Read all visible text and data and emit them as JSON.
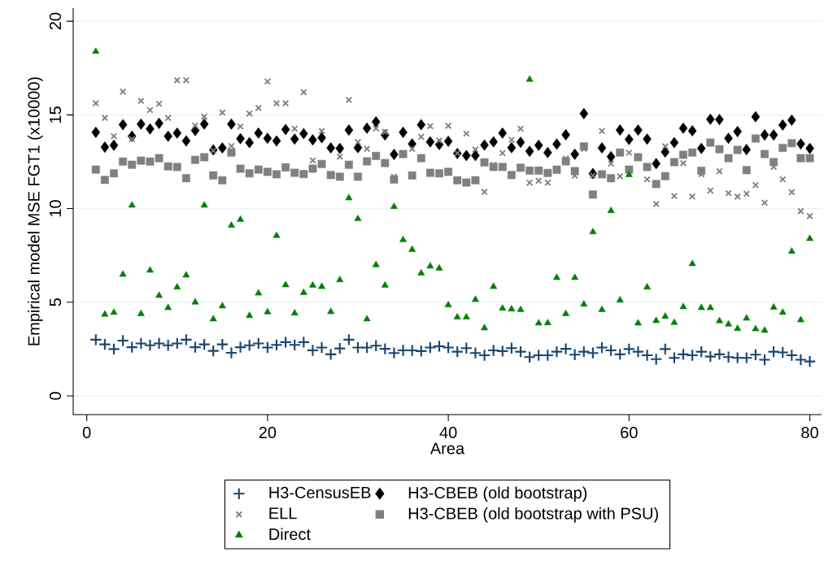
{
  "chart_data": {
    "type": "scatter",
    "xlabel": "Area",
    "ylabel": "Empirical model MSE FGT1 (x10000)",
    "xlim": [
      -1.5,
      81.3
    ],
    "ylim": [
      -1,
      20.7
    ],
    "xticks": [
      0,
      20,
      40,
      60,
      80
    ],
    "yticks": [
      0,
      5,
      10,
      15,
      20
    ],
    "grid": "y",
    "legend": "bottom",
    "x": [
      1,
      2,
      3,
      4,
      5,
      6,
      7,
      8,
      9,
      10,
      11,
      12,
      13,
      14,
      15,
      16,
      17,
      18,
      19,
      20,
      21,
      22,
      23,
      24,
      25,
      26,
      27,
      28,
      29,
      30,
      31,
      32,
      33,
      34,
      35,
      36,
      37,
      38,
      39,
      40,
      41,
      42,
      43,
      44,
      45,
      46,
      47,
      48,
      49,
      50,
      51,
      52,
      53,
      54,
      55,
      56,
      57,
      58,
      59,
      60,
      61,
      62,
      63,
      64,
      65,
      66,
      67,
      68,
      69,
      70,
      71,
      72,
      73,
      74,
      75,
      76,
      77,
      78,
      79,
      80
    ],
    "series": [
      {
        "name": "H3-CensusEB",
        "color": "#1a476f",
        "marker": "plus",
        "values": [
          3.0,
          2.75,
          2.5,
          2.95,
          2.6,
          2.8,
          2.7,
          2.8,
          2.7,
          2.8,
          3.0,
          2.6,
          2.75,
          2.4,
          2.75,
          2.3,
          2.6,
          2.7,
          2.8,
          2.58,
          2.72,
          2.87,
          2.72,
          2.87,
          2.43,
          2.58,
          2.22,
          2.53,
          3.0,
          2.58,
          2.58,
          2.68,
          2.51,
          2.29,
          2.43,
          2.43,
          2.39,
          2.58,
          2.65,
          2.58,
          2.36,
          2.55,
          2.29,
          2.17,
          2.43,
          2.39,
          2.55,
          2.36,
          2.07,
          2.17,
          2.17,
          2.36,
          2.51,
          2.2,
          2.36,
          2.29,
          2.58,
          2.43,
          2.22,
          2.5,
          2.36,
          2.17,
          1.96,
          2.5,
          2.03,
          2.22,
          2.17,
          2.36,
          2.1,
          2.22,
          2.07,
          2.03,
          2.03,
          2.2,
          1.93,
          2.36,
          2.32,
          2.17,
          1.93,
          1.84
        ]
      },
      {
        "name": "H3-CBEB (old bootstrap)",
        "color": "#000000",
        "marker": "diamond",
        "values": [
          14.07,
          13.28,
          13.38,
          14.48,
          13.86,
          14.51,
          14.25,
          14.55,
          13.86,
          14.03,
          13.61,
          14.17,
          14.51,
          13.13,
          13.24,
          14.51,
          13.73,
          13.52,
          14.03,
          13.75,
          13.61,
          14.22,
          13.71,
          14.0,
          13.67,
          13.78,
          13.24,
          13.21,
          14.19,
          13.25,
          14.29,
          14.63,
          13.93,
          12.89,
          14.07,
          13.45,
          14.48,
          13.56,
          13.42,
          13.59,
          12.94,
          12.83,
          12.83,
          13.39,
          13.56,
          14.03,
          13.25,
          13.54,
          13.06,
          13.38,
          12.99,
          13.44,
          13.94,
          12.9,
          15.07,
          11.87,
          13.24,
          12.77,
          14.19,
          13.69,
          14.19,
          13.71,
          12.4,
          13.02,
          13.52,
          14.29,
          14.15,
          13.21,
          14.77,
          14.75,
          13.75,
          14.11,
          13.15,
          14.9,
          13.93,
          13.93,
          14.46,
          14.72,
          13.45,
          13.21
        ]
      },
      {
        "name": "ELL",
        "color": "#808080",
        "marker": "cross",
        "values": [
          15.62,
          14.84,
          13.86,
          16.24,
          13.71,
          15.75,
          15.26,
          15.59,
          14.84,
          16.85,
          16.85,
          14.43,
          14.91,
          13.09,
          15.12,
          13.34,
          14.38,
          15.07,
          15.37,
          16.79,
          15.62,
          15.62,
          14.26,
          16.21,
          12.57,
          14.14,
          null,
          12.77,
          15.8,
          13.55,
          13.19,
          14.28,
          14.09,
          11.7,
          12.96,
          13.19,
          13.83,
          14.4,
          13.63,
          14.42,
          12.96,
          14.0,
          13.15,
          10.89,
          12.34,
          12.96,
          13.67,
          14.26,
          11.38,
          11.49,
          11.38,
          12.0,
          12.67,
          11.76,
          13.19,
          11.76,
          14.14,
          12.4,
          11.72,
          12.98,
          null,
          11.56,
          10.24,
          13.32,
          10.67,
          12.42,
          10.64,
          11.83,
          10.96,
          11.99,
          10.82,
          10.64,
          10.79,
          11.25,
          10.31,
          12.23,
          11.56,
          10.88,
          9.86,
          9.6
        ]
      },
      {
        "name": "H3-CBEB (old bootstrap with PSU)",
        "color": "#808080",
        "marker": "square",
        "values": [
          12.08,
          11.53,
          11.88,
          12.51,
          12.34,
          12.56,
          12.51,
          12.69,
          12.25,
          12.22,
          11.62,
          12.6,
          12.74,
          11.77,
          11.51,
          12.99,
          12.13,
          11.88,
          12.08,
          11.96,
          11.83,
          12.2,
          11.91,
          11.84,
          12.13,
          12.38,
          11.79,
          11.7,
          12.34,
          11.7,
          12.52,
          12.81,
          12.43,
          11.55,
          12.91,
          11.77,
          12.69,
          11.91,
          11.88,
          11.96,
          11.51,
          11.39,
          11.51,
          12.47,
          12.22,
          12.22,
          11.79,
          12.18,
          12.03,
          12.03,
          11.9,
          12.08,
          12.52,
          12.0,
          13.32,
          10.75,
          11.83,
          11.62,
          12.99,
          12.08,
          12.74,
          12.22,
          11.31,
          11.73,
          12.48,
          12.87,
          12.99,
          12.02,
          13.52,
          13.17,
          12.69,
          13.13,
          12.05,
          13.74,
          12.91,
          12.48,
          13.24,
          13.49,
          12.69,
          12.69
        ]
      },
      {
        "name": "Direct",
        "color": "#008000",
        "marker": "triangle",
        "values": [
          18.38,
          4.35,
          4.45,
          6.48,
          10.17,
          4.38,
          6.7,
          5.35,
          4.7,
          5.8,
          6.44,
          5.0,
          10.17,
          4.1,
          4.79,
          9.1,
          9.41,
          4.28,
          5.48,
          4.47,
          8.55,
          5.92,
          4.41,
          5.51,
          5.9,
          5.83,
          4.49,
          6.19,
          10.56,
          9.45,
          4.1,
          6.99,
          5.9,
          10.1,
          8.33,
          7.81,
          6.55,
          6.92,
          6.81,
          4.85,
          4.2,
          4.2,
          5.14,
          3.62,
          5.83,
          4.67,
          4.63,
          4.6,
          16.89,
          3.88,
          3.89,
          6.31,
          4.38,
          6.31,
          4.89,
          8.75,
          4.6,
          9.88,
          5.11,
          11.8,
          3.88,
          5.8,
          4.01,
          4.24,
          3.91,
          4.75,
          7.05,
          4.7,
          4.7,
          4.0,
          3.82,
          3.59,
          4.14,
          3.57,
          3.49,
          4.72,
          4.45,
          7.71,
          4.05,
          8.39
        ]
      }
    ]
  }
}
